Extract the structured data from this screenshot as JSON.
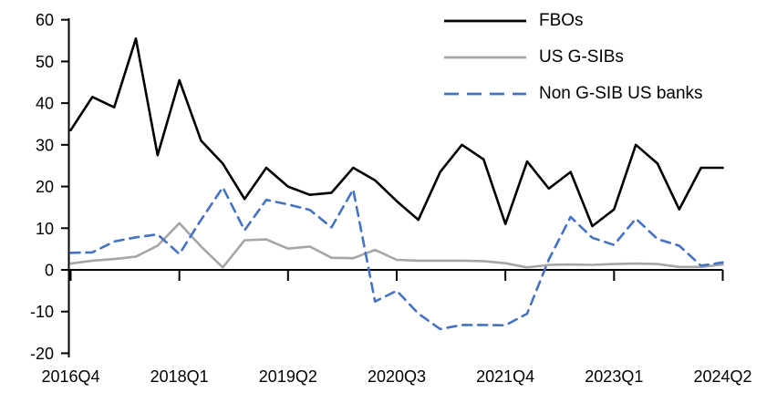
{
  "chart_data": {
    "type": "line",
    "title": "",
    "xlabel": "",
    "ylabel": "",
    "grid": "off",
    "legend_position": "top-right",
    "ylim": [
      -20,
      60
    ],
    "y_ticks": [
      60,
      50,
      40,
      30,
      20,
      10,
      0,
      -10,
      -20
    ],
    "x_categories": [
      "2016Q4",
      "2017Q1",
      "2017Q2",
      "2017Q3",
      "2017Q4",
      "2018Q1",
      "2018Q2",
      "2018Q3",
      "2018Q4",
      "2019Q1",
      "2019Q2",
      "2019Q3",
      "2019Q4",
      "2020Q1",
      "2020Q2",
      "2020Q3",
      "2020Q4",
      "2021Q1",
      "2021Q2",
      "2021Q3",
      "2021Q4",
      "2022Q1",
      "2022Q2",
      "2022Q3",
      "2022Q4",
      "2023Q1",
      "2023Q2",
      "2023Q3",
      "2023Q4",
      "2024Q1",
      "2024Q2"
    ],
    "x_tick_indices": [
      0,
      5,
      10,
      15,
      20,
      25,
      30
    ],
    "x_tick_labels": [
      "2016Q4",
      "2018Q1",
      "2019Q2",
      "2020Q3",
      "2021Q4",
      "2023Q1",
      "2024Q2"
    ],
    "axis_color": "#000000",
    "series": [
      {
        "name": "FBOs",
        "color": "#000000",
        "style": "solid",
        "values": [
          33.5,
          41.5,
          39,
          55.5,
          27.5,
          45.5,
          31,
          25.5,
          17,
          24.5,
          20,
          18,
          18.5,
          24.5,
          21.5,
          16.5,
          12,
          23.5,
          30,
          26.5,
          11,
          26,
          19.5,
          23.5,
          10.5,
          14.5,
          30,
          25.5,
          14.5,
          24.5,
          24.5
        ]
      },
      {
        "name": "US G-SIBs",
        "color": "#A6A6A6",
        "style": "solid",
        "values": [
          1.5,
          2.2,
          2.6,
          3.2,
          5.8,
          11.2,
          5.6,
          0.6,
          7.1,
          7.3,
          5.1,
          5.6,
          2.9,
          2.8,
          4.8,
          2.4,
          2.2,
          2.2,
          2.2,
          2.1,
          1.6,
          0.6,
          1.2,
          1.3,
          1.2,
          1.4,
          1.5,
          1.4,
          0.7,
          0.7,
          1.3
        ]
      },
      {
        "name": "Non G-SIB US banks",
        "color": "#4472C4",
        "style": "dashed",
        "values": [
          4.1,
          4.2,
          6.8,
          7.8,
          8.5,
          3.8,
          12,
          19.8,
          9.5,
          16.8,
          15.7,
          14.4,
          10.2,
          19.3,
          -7.6,
          -5,
          -10.5,
          -14.2,
          -13.2,
          -13.2,
          -13.3,
          -10.5,
          2.5,
          12.7,
          7.7,
          6,
          12.3,
          7.4,
          5.8,
          1,
          1.8
        ]
      }
    ]
  }
}
